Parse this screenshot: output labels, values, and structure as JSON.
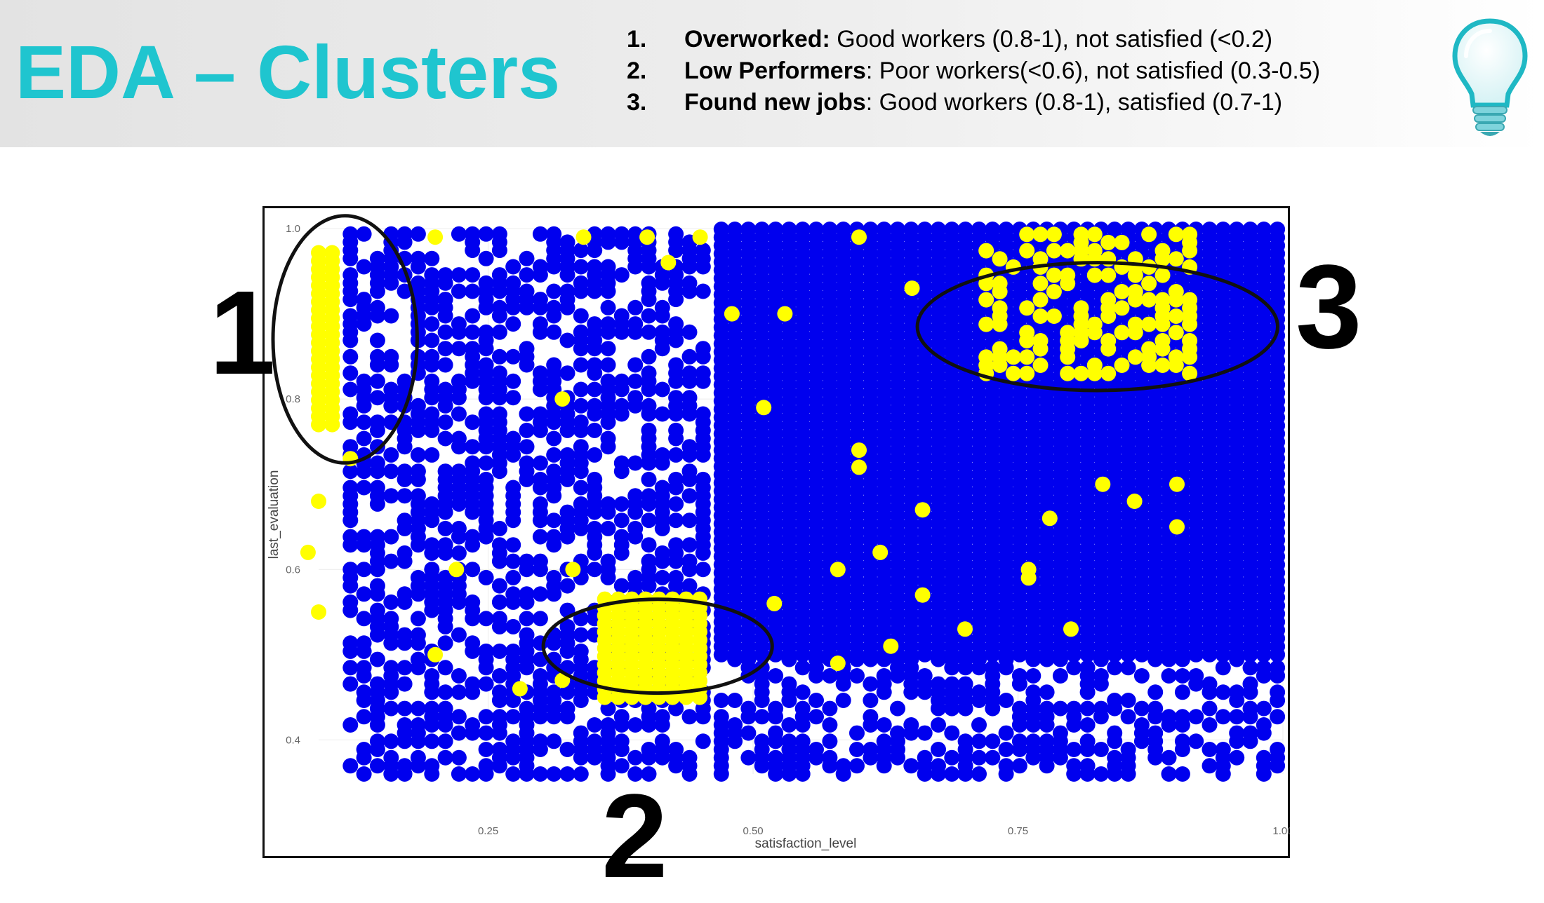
{
  "slide": {
    "title": "EDA – Clusters",
    "legend": [
      {
        "num": "1.",
        "label": "Overworked:",
        "desc": " Good workers (0.8-1), not satisfied (<0.2)"
      },
      {
        "num": "2.",
        "label": "Low Performers",
        "desc": ": Poor workers(<0.6), not satisfied (0.3-0.5)"
      },
      {
        "num": "3.",
        "label": "Found new jobs",
        "desc": ": Good workers (0.8-1), satisfied (0.7-1)"
      }
    ],
    "annotations": [
      {
        "label": "1",
        "center": [
          0.115,
          0.87
        ],
        "radius": [
          0.068,
          0.145
        ]
      },
      {
        "label": "2",
        "center": [
          0.41,
          0.51
        ],
        "radius": [
          0.108,
          0.055
        ]
      },
      {
        "label": "3",
        "center": [
          0.825,
          0.885
        ],
        "radius": [
          0.17,
          0.075
        ]
      }
    ],
    "colors": {
      "accent": "#1fc5cf",
      "blue_points": "#0000ee",
      "yellow_points": "#ffff00",
      "annotation": "#111111"
    },
    "icon": "lightbulb-icon"
  },
  "chart_data": {
    "type": "scatter",
    "xlabel": "satisfaction_level",
    "ylabel": "last_evaluation",
    "xlim": [
      0.09,
      1.0
    ],
    "ylim": [
      0.36,
      1.0
    ],
    "xticks": [
      0.25,
      0.5,
      0.75,
      1.0
    ],
    "xtick_labels": [
      "0.25",
      "0.50",
      "0.75",
      "1.00"
    ],
    "yticks": [
      0.4,
      0.6,
      0.8,
      1.0
    ],
    "ytick_labels": [
      "0.4",
      "0.6",
      "0.8",
      "1.0"
    ],
    "grid": true,
    "series": [
      {
        "color": "#0000ee",
        "regions": [
          {
            "x": [
              0.12,
              0.46
            ],
            "y": [
              0.36,
              1.0
            ],
            "density": 0.55
          },
          {
            "x": [
              0.47,
              1.0
            ],
            "y": [
              0.5,
              1.0
            ],
            "density": 1.0
          },
          {
            "x": [
              0.47,
              1.0
            ],
            "y": [
              0.36,
              0.5
            ],
            "density": 0.5
          }
        ]
      },
      {
        "color": "#ffff00",
        "regions": [
          {
            "x": [
              0.09,
              0.11
            ],
            "y": [
              0.77,
              0.98
            ],
            "density": 1.0
          },
          {
            "x": [
              0.36,
              0.46
            ],
            "y": [
              0.45,
              0.57
            ],
            "density": 1.0
          },
          {
            "x": [
              0.72,
              0.92
            ],
            "y": [
              0.83,
              1.0
            ],
            "density": 0.45
          }
        ],
        "scattered": [
          [
            0.08,
            0.62
          ],
          [
            0.09,
            0.68
          ],
          [
            0.09,
            0.55
          ],
          [
            0.12,
            0.73
          ],
          [
            0.32,
            0.8
          ],
          [
            0.33,
            0.6
          ],
          [
            0.22,
            0.6
          ],
          [
            0.32,
            0.47
          ],
          [
            0.28,
            0.46
          ],
          [
            0.2,
            0.5
          ],
          [
            0.51,
            0.79
          ],
          [
            0.6,
            0.74
          ],
          [
            0.6,
            0.72
          ],
          [
            0.62,
            0.62
          ],
          [
            0.58,
            0.6
          ],
          [
            0.52,
            0.56
          ],
          [
            0.58,
            0.49
          ],
          [
            0.63,
            0.51
          ],
          [
            0.66,
            0.67
          ],
          [
            0.66,
            0.57
          ],
          [
            0.7,
            0.53
          ],
          [
            0.78,
            0.66
          ],
          [
            0.76,
            0.6
          ],
          [
            0.76,
            0.59
          ],
          [
            0.8,
            0.53
          ],
          [
            0.86,
            0.68
          ],
          [
            0.9,
            0.65
          ],
          [
            0.9,
            0.7
          ],
          [
            0.48,
            0.9
          ],
          [
            0.53,
            0.9
          ],
          [
            0.65,
            0.93
          ],
          [
            0.83,
            0.7
          ],
          [
            0.45,
            0.99
          ],
          [
            0.4,
            0.99
          ],
          [
            0.6,
            0.99
          ],
          [
            0.42,
            0.96
          ],
          [
            0.2,
            0.99
          ],
          [
            0.34,
            0.99
          ]
        ]
      }
    ]
  }
}
